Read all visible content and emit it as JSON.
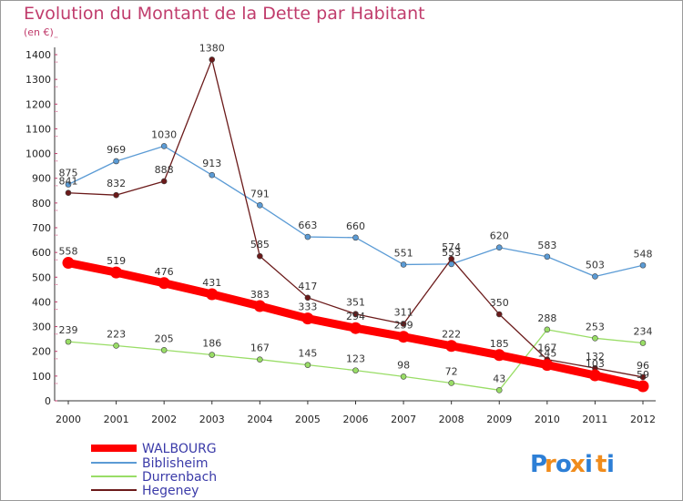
{
  "chart_data": {
    "type": "line",
    "title": "Evolution du Montant de la Dette par Habitant",
    "subtitle": "(en €)",
    "xlabel": "",
    "ylabel": "",
    "ylim": [
      0,
      1400
    ],
    "yticks": [
      0,
      100,
      200,
      300,
      400,
      500,
      600,
      700,
      800,
      900,
      1000,
      1100,
      1200,
      1300,
      1400
    ],
    "x": [
      "2000",
      "2001",
      "2002",
      "2003",
      "2004",
      "2005",
      "2006",
      "2007",
      "2008",
      "2009",
      "2010",
      "2011",
      "2012"
    ],
    "grid": false,
    "legend_position": "bottom-left",
    "series": [
      {
        "name": "WALBOURG",
        "color": "#ff0000",
        "values": [
          558,
          519,
          476,
          431,
          383,
          333,
          294,
          259,
          222,
          185,
          145,
          103,
          59
        ]
      },
      {
        "name": "Biblisheim",
        "color": "#5b9bd5",
        "values": [
          875,
          969,
          1030,
          913,
          791,
          663,
          660,
          551,
          553,
          620,
          583,
          503,
          548
        ]
      },
      {
        "name": "Durrenbach",
        "color": "#99dd66",
        "values": [
          239,
          223,
          205,
          186,
          167,
          145,
          123,
          98,
          72,
          43,
          288,
          253,
          234
        ]
      },
      {
        "name": "Hegeney",
        "color": "#6b1a1a",
        "values": [
          841,
          832,
          888,
          1380,
          585,
          417,
          351,
          311,
          574,
          350,
          167,
          132,
          96
        ]
      }
    ]
  },
  "logo": {
    "text": "Proxiti",
    "letters": [
      "P",
      "r",
      "o",
      "x",
      "i",
      "t",
      "i"
    ],
    "colors": [
      "#2d7fd6",
      "#f08c1c",
      "#2d7fd6",
      "#f08c1c",
      "#2d7fd6",
      "#f08c1c",
      "#2d7fd6"
    ]
  }
}
